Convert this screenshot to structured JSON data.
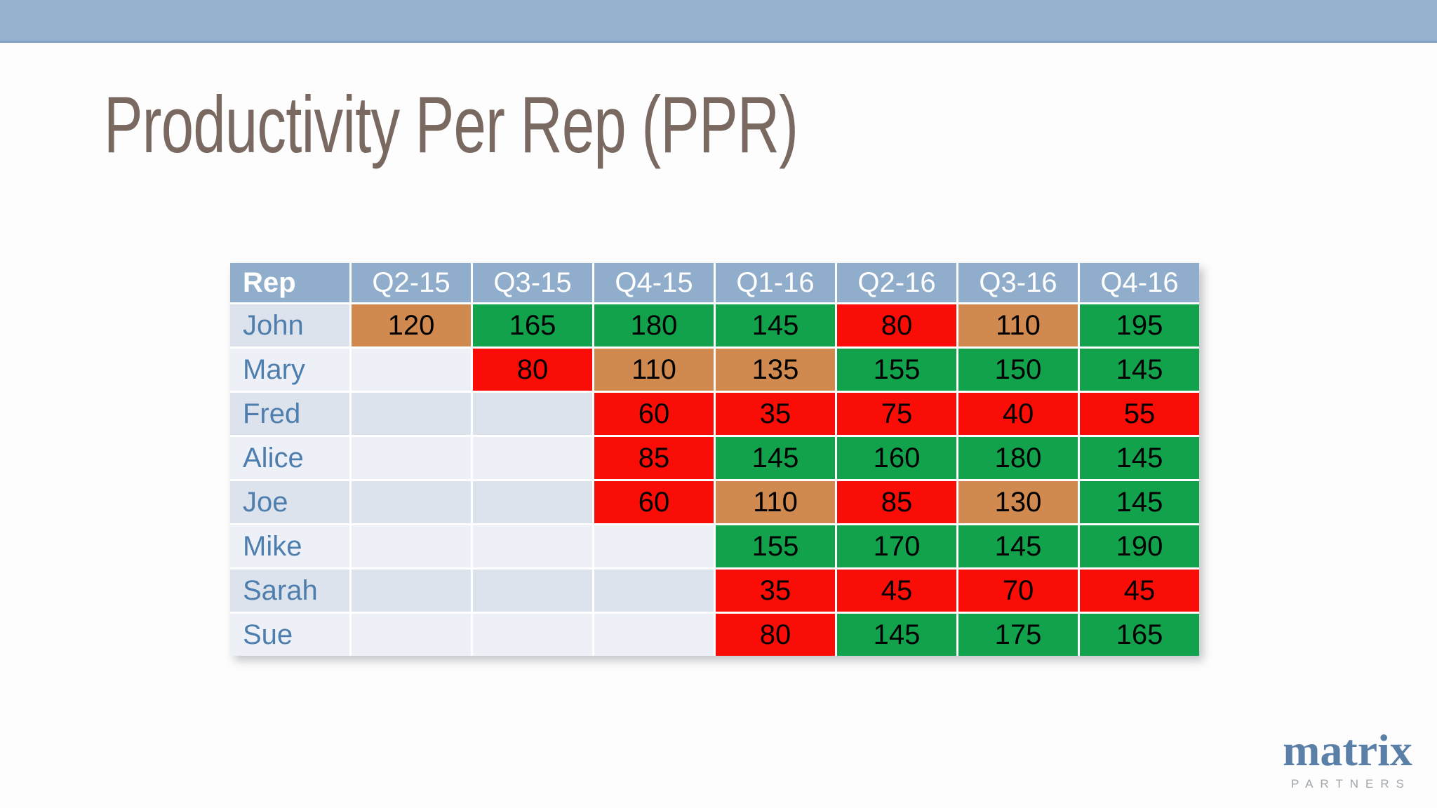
{
  "slide": {
    "title": "Productivity Per Rep (PPR)",
    "logo": {
      "brand": "matrix",
      "sub": "PARTNERS"
    }
  },
  "theme": {
    "slide_bg": "#fdfdfd",
    "bar_bg": "#95b2ce",
    "bar_edge": "#7fa0c2",
    "title_color": "#796961",
    "header_bg": "#90aecb",
    "header_text": "#ffffff",
    "name_color": "#4e7eae",
    "band_dark": "#dce3ec",
    "band_light": "#edf1f7",
    "green": "#12a24c",
    "red": "#f90d06",
    "orange": "#d0894e",
    "logo_blue": "#5b80a8",
    "logo_gray": "#9fa5ab"
  },
  "chart_data": {
    "type": "heatmap",
    "title": "Productivity Per Rep (PPR)",
    "columns": [
      "Rep",
      "Q2-15",
      "Q3-15",
      "Q4-15",
      "Q1-16",
      "Q2-16",
      "Q3-16",
      "Q4-16"
    ],
    "rows": [
      {
        "rep": "John",
        "band": "dark",
        "values": [
          120,
          165,
          180,
          145,
          80,
          110,
          195
        ],
        "colors": [
          "orange",
          "green",
          "green",
          "green",
          "red",
          "orange",
          "green"
        ]
      },
      {
        "rep": "Mary",
        "band": "light",
        "values": [
          null,
          80,
          110,
          135,
          155,
          150,
          145
        ],
        "colors": [
          null,
          "red",
          "orange",
          "orange",
          "green",
          "green",
          "green"
        ]
      },
      {
        "rep": "Fred",
        "band": "dark",
        "values": [
          null,
          null,
          60,
          35,
          75,
          40,
          55
        ],
        "colors": [
          null,
          null,
          "red",
          "red",
          "red",
          "red",
          "red"
        ]
      },
      {
        "rep": "Alice",
        "band": "light",
        "values": [
          null,
          null,
          85,
          145,
          160,
          180,
          145
        ],
        "colors": [
          null,
          null,
          "red",
          "green",
          "green",
          "green",
          "green"
        ]
      },
      {
        "rep": "Joe",
        "band": "dark",
        "values": [
          null,
          null,
          60,
          110,
          85,
          130,
          145
        ],
        "colors": [
          null,
          null,
          "red",
          "orange",
          "red",
          "orange",
          "green"
        ]
      },
      {
        "rep": "Mike",
        "band": "light",
        "values": [
          null,
          null,
          null,
          155,
          170,
          145,
          190
        ],
        "colors": [
          null,
          null,
          null,
          "green",
          "green",
          "green",
          "green"
        ]
      },
      {
        "rep": "Sarah",
        "band": "dark",
        "values": [
          null,
          null,
          null,
          35,
          45,
          70,
          45
        ],
        "colors": [
          null,
          null,
          null,
          "red",
          "red",
          "red",
          "red"
        ]
      },
      {
        "rep": "Sue",
        "band": "light",
        "values": [
          null,
          null,
          null,
          80,
          145,
          175,
          165
        ],
        "colors": [
          null,
          null,
          null,
          "red",
          "green",
          "green",
          "green"
        ]
      }
    ],
    "legend": "none",
    "color_scale": {
      "red": "low (<=85)",
      "orange": "mid (110-135)",
      "green": "high (>=145)"
    },
    "grid": "white gaps between cells"
  }
}
